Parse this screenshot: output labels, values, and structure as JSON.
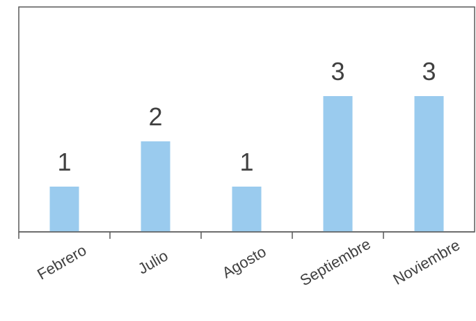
{
  "chart_data": {
    "type": "bar",
    "categories": [
      "Febrero",
      "Julio",
      "Agosto",
      "Septiembre",
      "Noviembre"
    ],
    "values": [
      1,
      2,
      1,
      3,
      3
    ],
    "data_labels": [
      "1",
      "2",
      "1",
      "3",
      "3"
    ],
    "title": "",
    "xlabel": "",
    "ylabel": "",
    "ylim": [
      0,
      5
    ],
    "grid": false,
    "legend": "none",
    "tick_label_rotation_deg": -30,
    "colors": {
      "bar": "#9ACBEE",
      "frame": "#595959",
      "axis": "#595959",
      "text": "#404040"
    }
  }
}
